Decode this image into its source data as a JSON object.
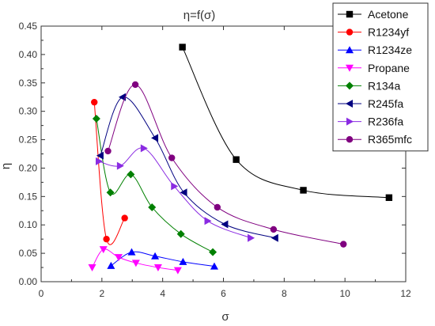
{
  "chart_data": {
    "type": "line",
    "title": "η=f(σ)",
    "xlabel": "σ",
    "ylabel": "η",
    "xlim": [
      0,
      12
    ],
    "ylim": [
      0,
      0.45
    ],
    "xticks": [
      "0",
      "2",
      "4",
      "6",
      "8",
      "10",
      "12"
    ],
    "yticks": [
      "0.00",
      "0.05",
      "0.10",
      "0.15",
      "0.20",
      "0.25",
      "0.30",
      "0.35",
      "0.40",
      "0.45"
    ],
    "grid": false,
    "legend_position": "top-right",
    "series": [
      {
        "name": "Acetone",
        "color": "#000000",
        "marker": "square",
        "x": [
          4.65,
          6.42,
          8.63,
          11.45
        ],
        "y": [
          0.413,
          0.215,
          0.161,
          0.148
        ]
      },
      {
        "name": "R1234yf",
        "color": "#ff0000",
        "marker": "circle",
        "x": [
          1.75,
          2.15,
          2.75
        ],
        "y": [
          0.316,
          0.075,
          0.112
        ]
      },
      {
        "name": "R1234ze",
        "color": "#0000ff",
        "marker": "triangle-up",
        "x": [
          2.3,
          2.98,
          3.75,
          4.67,
          5.7
        ],
        "y": [
          0.028,
          0.052,
          0.045,
          0.035,
          0.027
        ]
      },
      {
        "name": "Propane",
        "color": "#ff00ff",
        "marker": "triangle-down",
        "x": [
          1.68,
          2.05,
          2.55,
          3.12,
          3.85,
          4.5
        ],
        "y": [
          0.025,
          0.057,
          0.043,
          0.033,
          0.025,
          0.02
        ]
      },
      {
        "name": "R134a",
        "color": "#008000",
        "marker": "diamond",
        "x": [
          1.82,
          2.28,
          2.95,
          3.65,
          4.6,
          5.65
        ],
        "y": [
          0.287,
          0.157,
          0.189,
          0.131,
          0.084,
          0.052
        ]
      },
      {
        "name": "R245fa",
        "color": "#000080",
        "marker": "triangle-left",
        "x": [
          1.95,
          2.68,
          3.75,
          4.7,
          6.05,
          7.7
        ],
        "y": [
          0.222,
          0.325,
          0.253,
          0.157,
          0.101,
          0.077
        ]
      },
      {
        "name": "R236fa",
        "color": "#8a2be2",
        "marker": "triangle-right",
        "x": [
          1.9,
          2.6,
          3.38,
          4.38,
          5.48,
          6.9
        ],
        "y": [
          0.212,
          0.204,
          0.235,
          0.168,
          0.107,
          0.077
        ]
      },
      {
        "name": "R365mfc",
        "color": "#800080",
        "marker": "circle",
        "x": [
          2.2,
          3.1,
          4.3,
          5.8,
          7.65,
          9.95
        ],
        "y": [
          0.23,
          0.347,
          0.218,
          0.131,
          0.092,
          0.066
        ]
      }
    ]
  }
}
